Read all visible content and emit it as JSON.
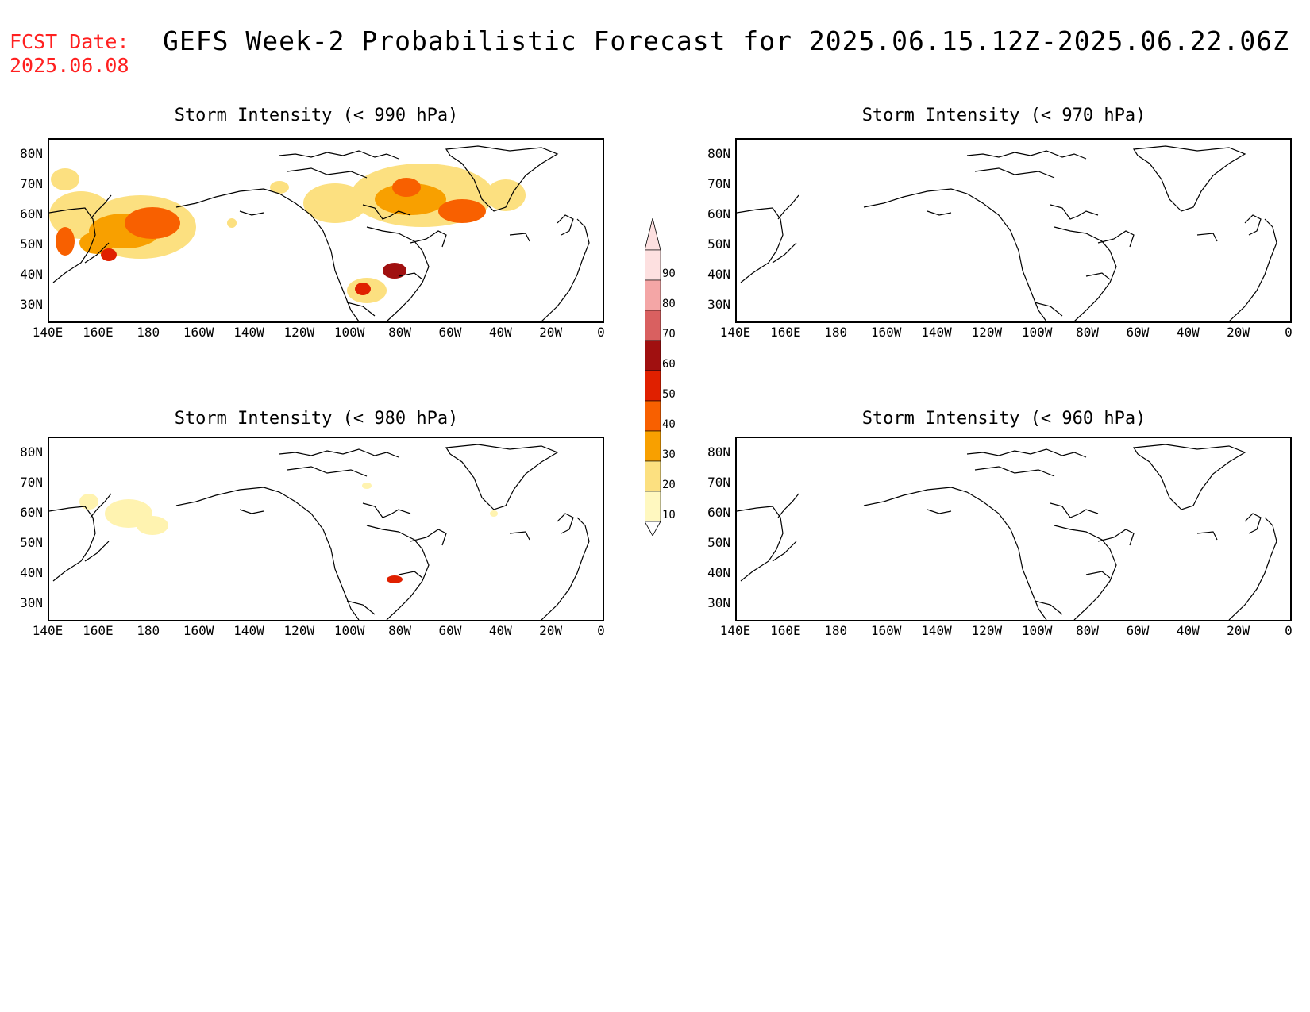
{
  "header": {
    "fcst_label": "FCST Date:",
    "fcst_date": "2025.06.08",
    "title": "GEFS Week-2 Probabilistic Forecast for 2025.06.15.12Z-2025.06.22.06Z"
  },
  "axes": {
    "lat_labels": [
      "80N",
      "70N",
      "60N",
      "50N",
      "40N",
      "30N"
    ],
    "lon_labels": [
      "140E",
      "160E",
      "180",
      "160W",
      "140W",
      "120W",
      "100W",
      "80W",
      "60W",
      "40W",
      "20W",
      "0"
    ]
  },
  "panels": [
    {
      "id": "p990",
      "title": "Storm Intensity (< 990 hPa)"
    },
    {
      "id": "p970",
      "title": "Storm Intensity (< 970 hPa)"
    },
    {
      "id": "p980",
      "title": "Storm Intensity (< 980 hPa)"
    },
    {
      "id": "p960",
      "title": "Storm Intensity (< 960 hPa)"
    }
  ],
  "colorbar": {
    "labels": [
      "90",
      "80",
      "70",
      "60",
      "50",
      "40",
      "30",
      "20",
      "10"
    ],
    "colors": [
      "#fde0e0",
      "#f4a6a6",
      "#d96060",
      "#a01010",
      "#e02000",
      "#f86000",
      "#f8a000",
      "#fce080",
      "#fff8c0"
    ]
  }
}
